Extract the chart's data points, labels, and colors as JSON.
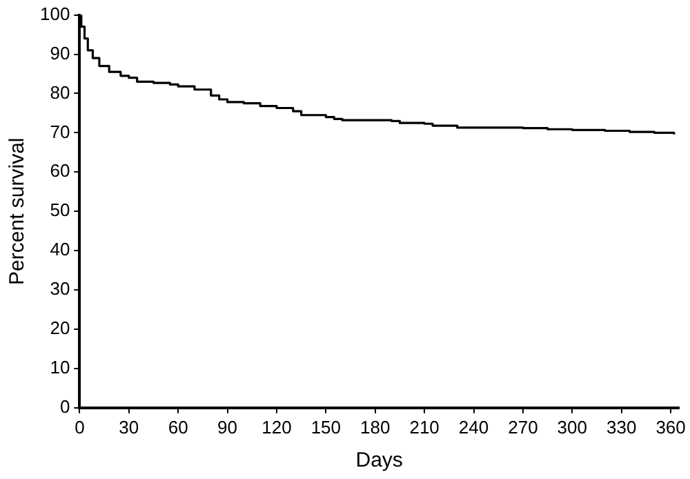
{
  "chart_data": {
    "type": "step",
    "xlabel": "Days",
    "ylabel": "Percent survival",
    "x": [
      0,
      1,
      3,
      5,
      8,
      12,
      18,
      25,
      30,
      35,
      45,
      55,
      60,
      70,
      80,
      85,
      90,
      100,
      110,
      120,
      130,
      135,
      150,
      155,
      160,
      190,
      195,
      210,
      215,
      230,
      270,
      285,
      300,
      320,
      335,
      350,
      362
    ],
    "series": [
      {
        "color": "#000000",
        "values": [
          100,
          97,
          94,
          91,
          89,
          87,
          85.5,
          84.5,
          84,
          83,
          82.7,
          82.3,
          81.8,
          81,
          79.5,
          78.5,
          77.8,
          77.5,
          76.8,
          76.3,
          75.5,
          74.5,
          74,
          73.5,
          73.2,
          73,
          72.5,
          72.3,
          71.8,
          71.3,
          71.2,
          70.9,
          70.7,
          70.5,
          70.2,
          70,
          69.6
        ]
      }
    ],
    "xlim": [
      0,
      365
    ],
    "xticks": [
      0,
      30,
      60,
      90,
      120,
      150,
      180,
      210,
      240,
      270,
      300,
      330,
      360
    ],
    "ylim": [
      0,
      100
    ],
    "yticks": [
      0,
      10,
      20,
      30,
      40,
      50,
      60,
      70,
      80,
      90,
      100
    ],
    "grid": false,
    "legend": false,
    "marker": "none",
    "line_style": "solid"
  }
}
